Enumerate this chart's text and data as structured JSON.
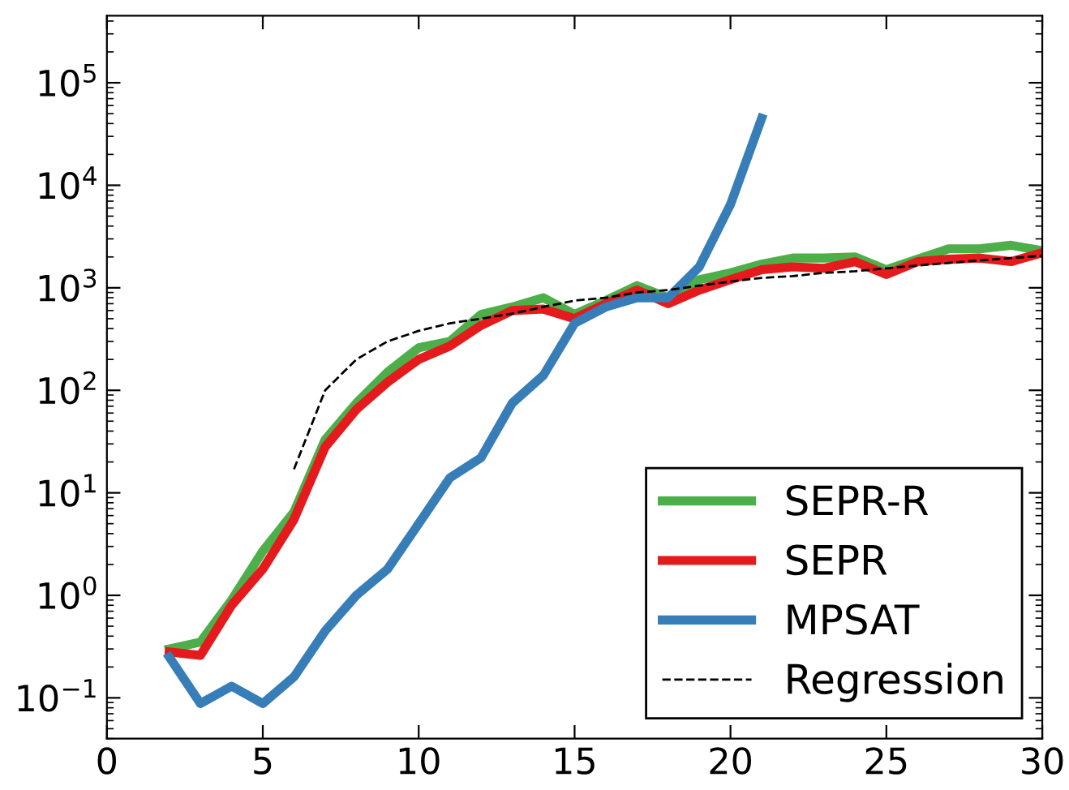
{
  "chart_data": {
    "type": "line",
    "log": "y",
    "grid": false,
    "legend": "bottom right",
    "marker": "none",
    "xlim": [
      0,
      30
    ],
    "xticks": [
      0,
      5,
      10,
      15,
      20,
      25,
      30
    ],
    "ylim": [
      0.04,
      450000
    ],
    "yticks": [
      {
        "value": 0.1,
        "label": "10$^{−1}$"
      },
      {
        "value": 1,
        "label": "10$^{0}$"
      },
      {
        "value": 10,
        "label": "10$^{1}$"
      },
      {
        "value": 100,
        "label": "10$^{2}$"
      },
      {
        "value": 1000,
        "label": "10$^{3}$"
      },
      {
        "value": 10000,
        "label": "10$^{4}$"
      },
      {
        "value": 100000,
        "label": "10$^{5}$"
      }
    ],
    "series": [
      {
        "name": "SEPR-R",
        "color": "#4daf4a",
        "line_style": "solid",
        "x": [
          2,
          3,
          4,
          5,
          6,
          7,
          8,
          9,
          10,
          11,
          12,
          13,
          14,
          15,
          16,
          17,
          18,
          19,
          20,
          21,
          22,
          23,
          24,
          25,
          26,
          27,
          28,
          29,
          30
        ],
        "values": [
          0.3,
          0.35,
          0.9,
          2.7,
          6.5,
          33,
          75,
          150,
          260,
          300,
          550,
          650,
          800,
          550,
          750,
          1050,
          800,
          1200,
          1400,
          1700,
          1950,
          1950,
          2000,
          1500,
          1900,
          2400,
          2400,
          2600,
          2300
        ]
      },
      {
        "name": "SEPR",
        "color": "#e41a1c",
        "line_style": "solid",
        "x": [
          2,
          3,
          4,
          5,
          6,
          7,
          8,
          9,
          10,
          11,
          12,
          13,
          14,
          15,
          16,
          17,
          18,
          19,
          20,
          21,
          22,
          23,
          24,
          25,
          26,
          27,
          28,
          29,
          30
        ],
        "values": [
          0.28,
          0.26,
          0.8,
          1.8,
          5.5,
          28,
          65,
          120,
          200,
          270,
          430,
          600,
          620,
          500,
          700,
          950,
          700,
          950,
          1200,
          1500,
          1600,
          1550,
          1800,
          1350,
          1800,
          1900,
          1950,
          1800,
          2200
        ]
      },
      {
        "name": "MPSAT",
        "color": "#377eb8",
        "line_style": "solid",
        "x": [
          2,
          3,
          4,
          5,
          6,
          7,
          8,
          9,
          10,
          11,
          12,
          13,
          14,
          15,
          16,
          17,
          18,
          19,
          20,
          21
        ],
        "values": [
          0.25,
          0.088,
          0.13,
          0.088,
          0.16,
          0.45,
          1.0,
          1.8,
          5,
          14,
          22,
          75,
          140,
          450,
          650,
          800,
          800,
          1600,
          6500,
          45000
        ]
      },
      {
        "name": "Regression",
        "color": "#000000",
        "line_style": "dashed",
        "x": [
          6,
          7,
          8,
          9,
          10,
          11,
          12,
          13,
          14,
          15,
          16,
          17,
          18,
          19,
          20,
          21,
          22,
          23,
          24,
          25,
          26,
          27,
          28,
          29,
          30
        ],
        "values": [
          17,
          100,
          200,
          300,
          380,
          450,
          500,
          560,
          650,
          750,
          800,
          900,
          950,
          1050,
          1150,
          1250,
          1300,
          1400,
          1450,
          1550,
          1650,
          1750,
          1850,
          1950,
          2050
        ]
      }
    ]
  }
}
